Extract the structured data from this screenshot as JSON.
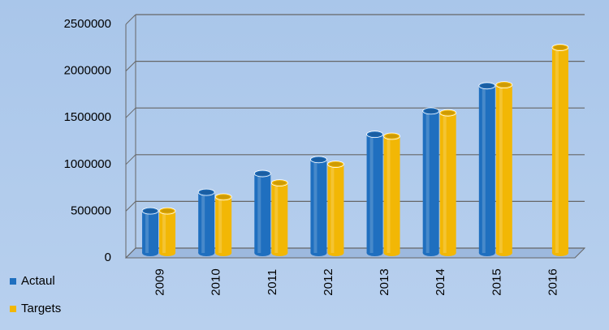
{
  "chart_data": {
    "type": "bar",
    "categories": [
      "2009",
      "2010",
      "2011",
      "2012",
      "2013",
      "2014",
      "2015",
      "2016"
    ],
    "series": [
      {
        "name": "Actaul",
        "color": "#1f6fbf",
        "values": [
          450000,
          650000,
          850000,
          1000000,
          1270000,
          1520000,
          1790000,
          null
        ]
      },
      {
        "name": "Targets",
        "color": "#f2b705",
        "values": [
          450000,
          600000,
          750000,
          950000,
          1250000,
          1500000,
          1800000,
          2200000
        ]
      }
    ],
    "ylim": [
      0,
      2500000
    ],
    "yticks": [
      0,
      500000,
      1000000,
      1500000,
      2000000,
      2500000
    ],
    "grid": true
  }
}
